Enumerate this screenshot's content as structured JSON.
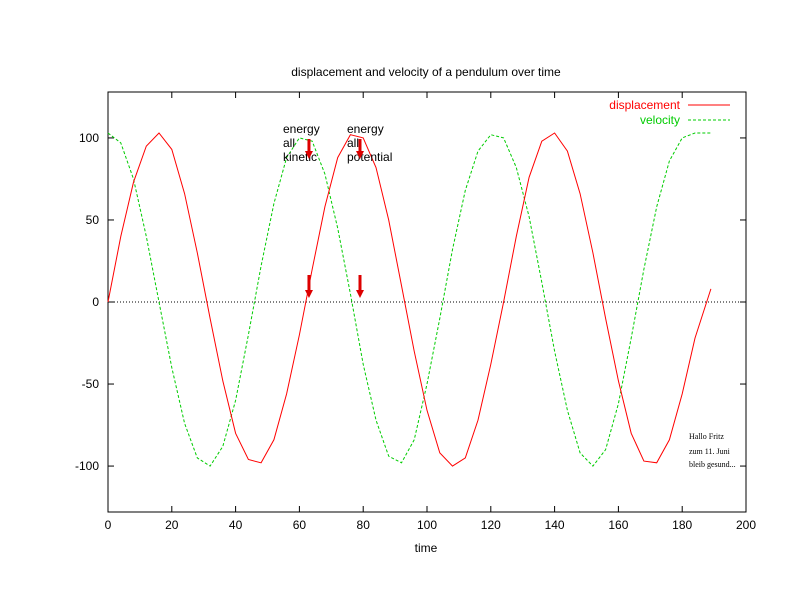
{
  "chart_data": {
    "type": "line",
    "title": "displacement and velocity of a pendulum over time",
    "xlabel": "time",
    "ylabel": "",
    "xlim": [
      0,
      200
    ],
    "ylim": [
      -128,
      128
    ],
    "x_ticks": [
      0,
      20,
      40,
      60,
      80,
      100,
      120,
      140,
      160,
      180,
      200
    ],
    "y_ticks": [
      100,
      50,
      0,
      -50,
      -100
    ],
    "zero_line": 0,
    "legend_position": "top-right",
    "colors": {
      "displacement": "#ff0000",
      "velocity": "#00cc00",
      "zero_line": "#000000",
      "arrows": "#dd0000"
    },
    "series": [
      {
        "name": "displacement",
        "style": "solid",
        "x_range": [
          0,
          189
        ],
        "x": [
          0,
          4,
          8,
          12,
          16,
          20,
          24,
          28,
          32,
          36,
          40,
          44,
          48,
          52,
          56,
          60,
          64,
          68,
          72,
          76,
          80,
          84,
          88,
          92,
          96,
          100,
          104,
          108,
          112,
          116,
          120,
          124,
          128,
          132,
          136,
          140,
          144,
          148,
          152,
          156,
          160,
          164,
          168,
          172,
          176,
          180,
          184,
          189
        ],
        "values": [
          0,
          40,
          73,
          95,
          103,
          93,
          66,
          30,
          -10,
          -48,
          -80,
          -96,
          -98,
          -84,
          -56,
          -20,
          20,
          58,
          88,
          102,
          100,
          82,
          50,
          10,
          -30,
          -66,
          -92,
          -100,
          -95,
          -72,
          -38,
          0,
          40,
          76,
          98,
          103,
          92,
          66,
          30,
          -10,
          -48,
          -80,
          -97,
          -98,
          -84,
          -56,
          -22,
          8
        ]
      },
      {
        "name": "velocity",
        "style": "dashed",
        "x_range": [
          0,
          189
        ],
        "x": [
          0,
          4,
          8,
          12,
          16,
          20,
          24,
          28,
          32,
          36,
          40,
          44,
          48,
          52,
          56,
          60,
          64,
          68,
          72,
          76,
          80,
          84,
          88,
          92,
          96,
          100,
          104,
          108,
          112,
          116,
          120,
          124,
          128,
          132,
          136,
          140,
          144,
          148,
          152,
          156,
          160,
          164,
          168,
          172,
          176,
          180,
          184,
          189
        ],
        "values": [
          103,
          97,
          75,
          40,
          0,
          -40,
          -74,
          -95,
          -100,
          -88,
          -60,
          -20,
          22,
          60,
          88,
          100,
          98,
          78,
          45,
          5,
          -38,
          -72,
          -94,
          -98,
          -84,
          -50,
          -10,
          32,
          68,
          92,
          102,
          100,
          82,
          52,
          12,
          -30,
          -66,
          -92,
          -100,
          -90,
          -62,
          -22,
          20,
          58,
          86,
          100,
          103,
          103
        ]
      }
    ],
    "annotations": [
      {
        "id": "kinetic",
        "lines": [
          "energy",
          "all",
          "kinetic"
        ],
        "arrow_x": 63
      },
      {
        "id": "potential",
        "lines": [
          "energy",
          "all",
          "potential"
        ],
        "arrow_x": 79
      }
    ],
    "note_lines": [
      "Hallo Fritz",
      "zum 11. Juni",
      "bleib gesund..."
    ]
  }
}
